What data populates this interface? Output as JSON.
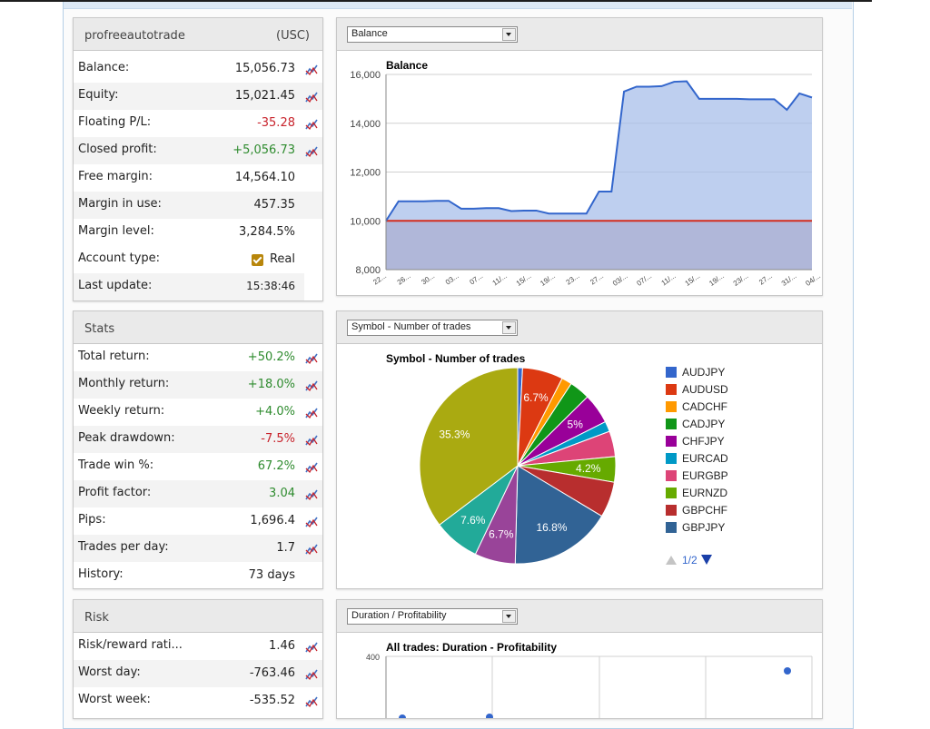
{
  "account": {
    "name": "profreeautotrade",
    "currency": "(USC)",
    "rows": [
      {
        "label": "Balance:",
        "value": "15,056.73",
        "tone": "",
        "chart": true
      },
      {
        "label": "Equity:",
        "value": "15,021.45",
        "tone": "",
        "chart": true
      },
      {
        "label": "Floating P/L:",
        "value": "-35.28",
        "tone": "neg",
        "chart": true
      },
      {
        "label": "Closed profit:",
        "value": "+5,056.73",
        "tone": "pos",
        "chart": true
      },
      {
        "label": "Free margin:",
        "value": "14,564.10",
        "tone": "",
        "chart": false
      },
      {
        "label": "Margin in use:",
        "value": "457.35",
        "tone": "",
        "chart": false
      },
      {
        "label": "Margin level:",
        "value": "3,284.5%",
        "tone": "",
        "chart": false
      }
    ],
    "account_type_label": "Account type:",
    "account_type_value": "Real",
    "last_update_label": "Last update:",
    "last_update_value": "15:38:46"
  },
  "stats": {
    "title": "Stats",
    "rows": [
      {
        "label": "Total return:",
        "value": "+50.2%",
        "tone": "pos",
        "chart": true
      },
      {
        "label": "Monthly return:",
        "value": "+18.0%",
        "tone": "pos",
        "chart": true
      },
      {
        "label": "Weekly return:",
        "value": "+4.0%",
        "tone": "pos",
        "chart": true
      },
      {
        "label": "Peak drawdown:",
        "value": "-7.5%",
        "tone": "neg",
        "chart": true
      },
      {
        "label": "Trade win %:",
        "value": "67.2%",
        "tone": "pos",
        "chart": true
      },
      {
        "label": "Profit factor:",
        "value": "3.04",
        "tone": "pos",
        "chart": true
      },
      {
        "label": "Pips:",
        "value": "1,696.4",
        "tone": "",
        "chart": true
      },
      {
        "label": "Trades per day:",
        "value": "1.7",
        "tone": "",
        "chart": true
      },
      {
        "label": "History:",
        "value": "73 days",
        "tone": "",
        "chart": false
      }
    ]
  },
  "risk": {
    "title": "Risk",
    "rows": [
      {
        "label": "Risk/reward rati...",
        "value": "1.46",
        "tone": "",
        "chart": true
      },
      {
        "label": "Worst day:",
        "value": "-763.46",
        "tone": "",
        "chart": true
      },
      {
        "label": "Worst week:",
        "value": "-535.52",
        "tone": "",
        "chart": true
      }
    ]
  },
  "balance_panel": {
    "select_value": "Balance",
    "chart_data": {
      "type": "area",
      "title": "Balance",
      "ylim": [
        8000,
        16000
      ],
      "yticks": [
        "16,000",
        "14,000",
        "12,000",
        "10,000",
        "8,000"
      ],
      "xticks": [
        "22...",
        "26...",
        "30...",
        "03...",
        "07...",
        "11/...",
        "15/...",
        "19/...",
        "23...",
        "27...",
        "03/...",
        "07/...",
        "11/...",
        "15/...",
        "19/...",
        "23/...",
        "27...",
        "31/...",
        "04/..."
      ],
      "baseline": 10000,
      "values": [
        10000,
        10800,
        10800,
        10800,
        10820,
        10820,
        10500,
        10500,
        10520,
        10520,
        10400,
        10420,
        10420,
        10300,
        10300,
        10300,
        10300,
        11200,
        11200,
        15300,
        15500,
        15500,
        15520,
        15700,
        15720,
        15000,
        15000,
        15000,
        15000,
        14980,
        14980,
        14980,
        14550,
        15220,
        15056
      ]
    }
  },
  "pie_panel": {
    "select_value": "Symbol - Number of trades",
    "pager": "1/2",
    "chart_data": {
      "type": "pie",
      "title": "Symbol - Number of trades",
      "slices": [
        {
          "name": "AUDJPY",
          "value": 0.8,
          "color": "#3366cc"
        },
        {
          "name": "AUDUSD",
          "value": 6.7,
          "color": "#dc3912"
        },
        {
          "name": "CADCHF",
          "value": 1.7,
          "color": "#ff9900"
        },
        {
          "name": "CADJPY",
          "value": 3.4,
          "color": "#109618"
        },
        {
          "name": "CHFJPY",
          "value": 5.0,
          "color": "#990099"
        },
        {
          "name": "EURCAD",
          "value": 1.7,
          "color": "#0099c6"
        },
        {
          "name": "EURGBP",
          "value": 4.2,
          "color": "#dd4477"
        },
        {
          "name": "EURNZD",
          "value": 4.2,
          "color": "#66aa00"
        },
        {
          "name": "GBPCHF",
          "value": 5.9,
          "color": "#b82e2e"
        },
        {
          "name": "GBPJPY",
          "value": 16.8,
          "color": "#316395"
        },
        {
          "name": "",
          "value": 6.7,
          "color": "#994499"
        },
        {
          "name": "",
          "value": 7.6,
          "color": "#22aa99"
        },
        {
          "name": "",
          "value": 35.3,
          "color": "#aaaa11"
        }
      ],
      "labels": [
        "6.7%",
        "5%",
        "4.2%",
        "16.8%",
        "6.7%",
        "7.6%",
        "35.3%"
      ],
      "legend": [
        "AUDJPY",
        "AUDUSD",
        "CADCHF",
        "CADJPY",
        "CHFJPY",
        "EURCAD",
        "EURGBP",
        "EURNZD",
        "GBPCHF",
        "GBPJPY"
      ]
    }
  },
  "duration_panel": {
    "select_value": "Duration / Profitability",
    "chart_data": {
      "type": "scatter",
      "title": "All trades: Duration - Profitability",
      "yticks": [
        "400"
      ]
    }
  },
  "colors": {
    "positive": "#2e8b2e",
    "negative": "#c8232c",
    "accent": "#4472c4"
  },
  "icons": [
    "line-chart-icon",
    "check-icon",
    "triangle-up-icon",
    "triangle-down-icon",
    "dropdown-arrow-icon"
  ]
}
